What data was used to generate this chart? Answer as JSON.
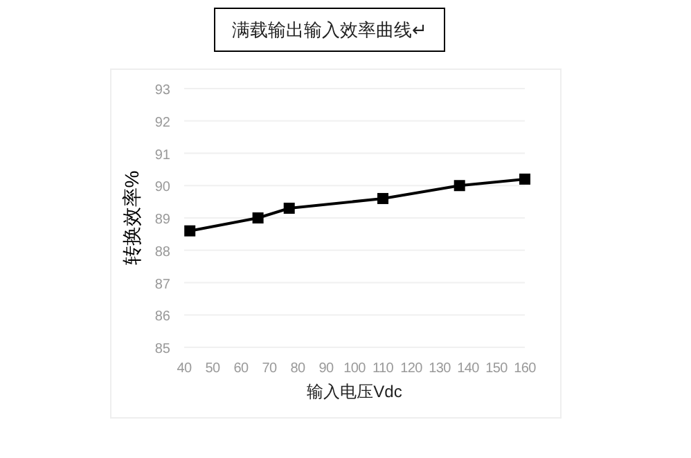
{
  "chart_data": {
    "type": "line",
    "title": "满载输出输入效率曲线↵",
    "xlabel": "输入电压Vdc",
    "ylabel": "转换效率%",
    "x": [
      42,
      66,
      77,
      110,
      137,
      160
    ],
    "series": [
      {
        "color": "#000000",
        "values": [
          88.6,
          89.0,
          89.3,
          89.6,
          90.0,
          90.2
        ]
      }
    ],
    "xlim": [
      40,
      160
    ],
    "xticks": [
      40,
      50,
      60,
      70,
      80,
      90,
      100,
      110,
      120,
      130,
      140,
      150,
      160
    ],
    "ylim": [
      85,
      93
    ],
    "yticks": [
      85,
      86,
      87,
      88,
      89,
      90,
      91,
      92,
      93
    ],
    "grid": "y",
    "marker": "square",
    "line_style": "solid"
  }
}
